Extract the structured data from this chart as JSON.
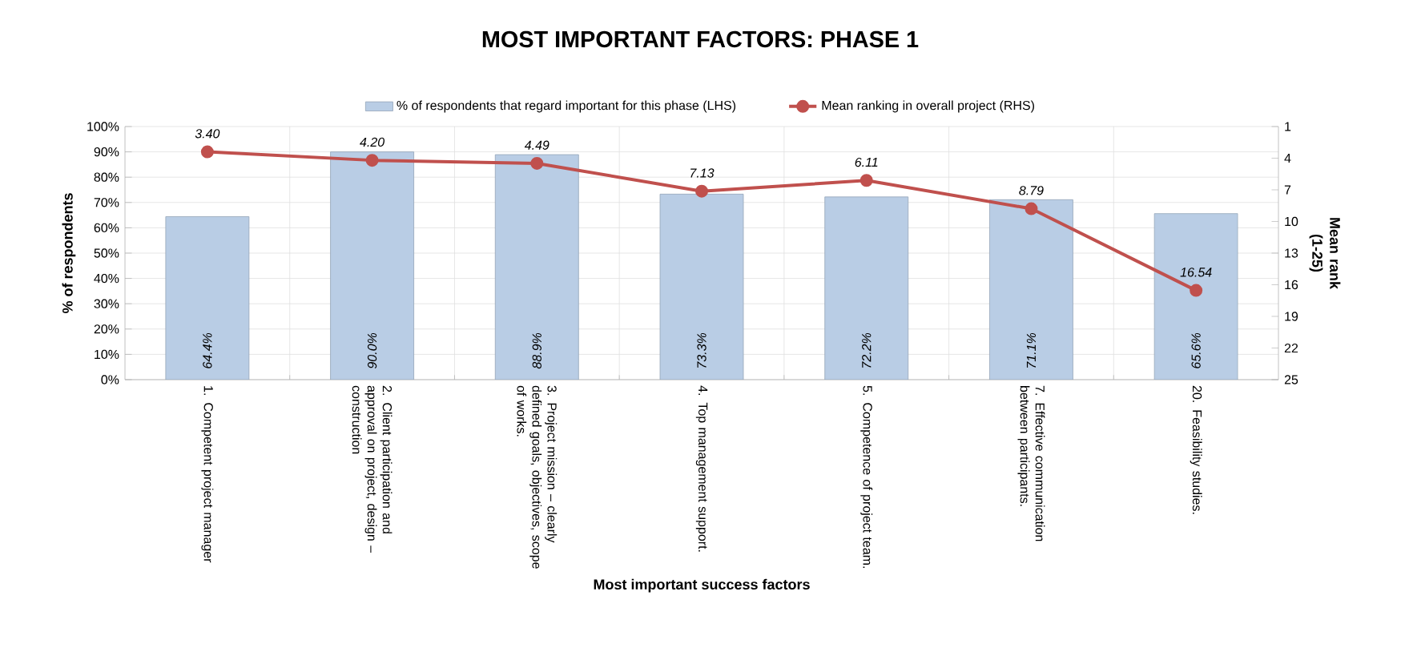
{
  "chart_data": {
    "type": "bar",
    "title": "MOST IMPORTANT FACTORS: PHASE 1",
    "xlabel": "Most important success factors",
    "ylabel": "% of respondents",
    "y2label": "Mean rank (1-25)",
    "categories": [
      "1. Competent project manager",
      "2. Client participation and approval on project, design – construction",
      "3. Project mission – clearly defined goals, objectives, scope of works.",
      "4. Top management support.",
      "5. Competence of project team.",
      "7. Effective communication between participants.",
      "20. Feasibility studies."
    ],
    "series": [
      {
        "name": "% of respondents that regard important for this phase (LHS)",
        "color": "#b9cde5",
        "values": [
          64.4,
          90.0,
          88.9,
          73.3,
          72.2,
          71.1,
          65.6
        ],
        "value_labels": [
          "64.4%",
          "90.0%",
          "88.9%",
          "73.3%",
          "72.2%",
          "71.1%",
          "65.6%"
        ]
      },
      {
        "name": "Mean ranking in overall project (RHS)",
        "type": "line",
        "axis": "y2",
        "color": "#c0504d",
        "values": [
          3.4,
          4.2,
          4.49,
          7.13,
          6.11,
          8.79,
          16.54
        ],
        "value_labels": [
          "3.40",
          "4.20",
          "4.49",
          "7.13",
          "6.11",
          "8.79",
          "16.54"
        ]
      }
    ],
    "ylim": [
      0,
      100
    ],
    "yticks": [
      {
        "value": 0,
        "label": "0%"
      },
      {
        "value": 10,
        "label": "10%"
      },
      {
        "value": 20,
        "label": "20%"
      },
      {
        "value": 30,
        "label": "30%"
      },
      {
        "value": 40,
        "label": "40%"
      },
      {
        "value": 50,
        "label": "50%"
      },
      {
        "value": 60,
        "label": "60%"
      },
      {
        "value": 70,
        "label": "70%"
      },
      {
        "value": 80,
        "label": "80%"
      },
      {
        "value": 90,
        "label": "90%"
      },
      {
        "value": 100,
        "label": "100%"
      }
    ],
    "y2lim": [
      25,
      1
    ],
    "y2ticks": [
      1,
      4,
      7,
      10,
      13,
      16,
      19,
      22,
      25
    ],
    "grid": true,
    "legend": "top",
    "marker": "circle",
    "line_style": "solid"
  }
}
